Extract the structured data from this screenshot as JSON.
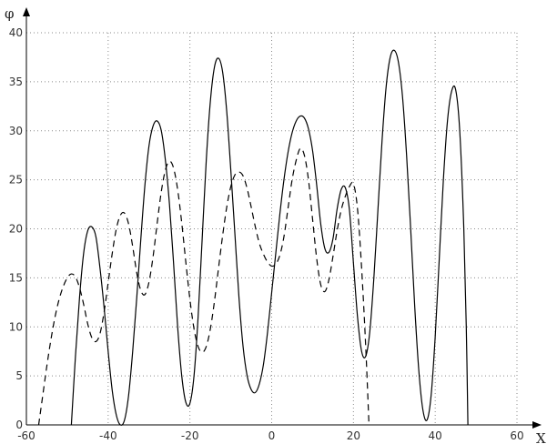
{
  "chart_data": {
    "type": "line",
    "title": "",
    "xlabel": "X",
    "ylabel": "φ",
    "xlim": [
      -60,
      60
    ],
    "ylim": [
      0,
      40
    ],
    "grid": true,
    "x_ticks": [
      "-60",
      "-40",
      "-20",
      "0",
      "20",
      "40",
      "60"
    ],
    "y_ticks": [
      "0",
      "5",
      "10",
      "15",
      "20",
      "25",
      "30",
      "35",
      "40"
    ],
    "series": [
      {
        "style": "solid",
        "color": "#000000",
        "points": [
          [
            -49,
            0
          ],
          [
            -48,
            7
          ],
          [
            -47,
            13
          ],
          [
            -46,
            17.5
          ],
          [
            -45,
            19.8
          ],
          [
            -44,
            20.2
          ],
          [
            -43,
            19.2
          ],
          [
            -42,
            16
          ],
          [
            -41,
            12
          ],
          [
            -40,
            7.5
          ],
          [
            -39,
            3.5
          ],
          [
            -38,
            1
          ],
          [
            -37,
            0
          ],
          [
            -36,
            0.5
          ],
          [
            -35,
            3
          ],
          [
            -34,
            7.5
          ],
          [
            -33,
            13
          ],
          [
            -32,
            19
          ],
          [
            -31,
            24.5
          ],
          [
            -30,
            28.5
          ],
          [
            -29,
            30.5
          ],
          [
            -28,
            31
          ],
          [
            -27,
            30
          ],
          [
            -26,
            27
          ],
          [
            -25,
            22.5
          ],
          [
            -24,
            16.5
          ],
          [
            -23,
            10
          ],
          [
            -22,
            5
          ],
          [
            -21,
            2.3
          ],
          [
            -20,
            2.2
          ],
          [
            -19,
            5
          ],
          [
            -18,
            11
          ],
          [
            -17,
            19
          ],
          [
            -16,
            27
          ],
          [
            -15,
            33
          ],
          [
            -14,
            36.5
          ],
          [
            -13,
            37.4
          ],
          [
            -12,
            36
          ],
          [
            -11,
            32
          ],
          [
            -10,
            26
          ],
          [
            -9,
            19.5
          ],
          [
            -8,
            13
          ],
          [
            -7,
            8
          ],
          [
            -6,
            5
          ],
          [
            -5,
            3.6
          ],
          [
            -4,
            3.3
          ],
          [
            -3,
            4.2
          ],
          [
            -2,
            6.2
          ],
          [
            -1,
            9.5
          ],
          [
            0,
            13.5
          ],
          [
            1,
            17.5
          ],
          [
            2,
            21.5
          ],
          [
            3,
            25
          ],
          [
            4,
            27.8
          ],
          [
            5,
            29.8
          ],
          [
            6,
            31
          ],
          [
            7,
            31.5
          ],
          [
            8,
            31.3
          ],
          [
            9,
            30.2
          ],
          [
            10,
            28
          ],
          [
            11,
            24.5
          ],
          [
            12,
            20.5
          ],
          [
            13,
            18
          ],
          [
            14,
            17.6
          ],
          [
            15,
            19
          ],
          [
            16,
            22
          ],
          [
            17,
            24
          ],
          [
            18,
            24.2
          ],
          [
            19,
            22
          ],
          [
            20,
            16.5
          ],
          [
            21,
            11
          ],
          [
            22,
            7.5
          ],
          [
            23,
            7
          ],
          [
            24,
            9.5
          ],
          [
            25,
            15
          ],
          [
            26,
            22
          ],
          [
            27,
            29
          ],
          [
            28,
            34.5
          ],
          [
            29,
            37.5
          ],
          [
            30,
            38.2
          ],
          [
            31,
            37
          ],
          [
            32,
            33.5
          ],
          [
            33,
            27.5
          ],
          [
            34,
            20
          ],
          [
            35,
            12
          ],
          [
            36,
            5.5
          ],
          [
            37,
            1.5
          ],
          [
            38,
            0.5
          ],
          [
            39,
            3
          ],
          [
            40,
            9
          ],
          [
            41,
            17
          ],
          [
            42,
            25
          ],
          [
            43,
            31
          ],
          [
            44,
            34
          ],
          [
            45,
            34.2
          ],
          [
            46,
            30
          ],
          [
            47,
            20
          ],
          [
            47.6,
            10
          ],
          [
            48,
            0
          ]
        ]
      },
      {
        "style": "dashed",
        "color": "#000000",
        "points": [
          [
            -57,
            0
          ],
          [
            -56,
            3
          ],
          [
            -55,
            6
          ],
          [
            -54,
            8.7
          ],
          [
            -53,
            11
          ],
          [
            -52,
            12.8
          ],
          [
            -51,
            14.1
          ],
          [
            -50,
            15
          ],
          [
            -49,
            15.4
          ],
          [
            -48,
            15.1
          ],
          [
            -47,
            14
          ],
          [
            -46,
            12.3
          ],
          [
            -45,
            10.3
          ],
          [
            -44,
            8.9
          ],
          [
            -43,
            8.5
          ],
          [
            -42,
            9.3
          ],
          [
            -41,
            11.5
          ],
          [
            -40,
            14.5
          ],
          [
            -39,
            17.5
          ],
          [
            -38,
            20
          ],
          [
            -37,
            21.4
          ],
          [
            -36,
            21.6
          ],
          [
            -35,
            20.5
          ],
          [
            -34,
            18.2
          ],
          [
            -33,
            15.5
          ],
          [
            -32,
            13.7
          ],
          [
            -31,
            13.3
          ],
          [
            -30,
            14.6
          ],
          [
            -29,
            17.2
          ],
          [
            -28,
            20.6
          ],
          [
            -27,
            23.8
          ],
          [
            -26,
            26
          ],
          [
            -25,
            26.9
          ],
          [
            -24,
            26.2
          ],
          [
            -23,
            24
          ],
          [
            -22,
            20.6
          ],
          [
            -21,
            16.6
          ],
          [
            -20,
            12.8
          ],
          [
            -19,
            9.8
          ],
          [
            -18,
            8
          ],
          [
            -17,
            7.4
          ],
          [
            -16,
            8
          ],
          [
            -15,
            9.8
          ],
          [
            -14,
            12.6
          ],
          [
            -13,
            16
          ],
          [
            -12,
            19.3
          ],
          [
            -11,
            22.2
          ],
          [
            -10,
            24.3
          ],
          [
            -9,
            25.5
          ],
          [
            -8,
            25.8
          ],
          [
            -7,
            25.4
          ],
          [
            -6,
            24.1
          ],
          [
            -5,
            22.2
          ],
          [
            -4,
            20.2
          ],
          [
            -3,
            18.5
          ],
          [
            -2,
            17.4
          ],
          [
            -1,
            16.6
          ],
          [
            0,
            16.2
          ],
          [
            1,
            16.4
          ],
          [
            2,
            17.3
          ],
          [
            3,
            19.2
          ],
          [
            4,
            22.1
          ],
          [
            5,
            25
          ],
          [
            6,
            27
          ],
          [
            7,
            28.2
          ],
          [
            8,
            27.5
          ],
          [
            9,
            25
          ],
          [
            10,
            21
          ],
          [
            11,
            17
          ],
          [
            12,
            14.3
          ],
          [
            13,
            13.6
          ],
          [
            14,
            14.8
          ],
          [
            15,
            17.2
          ],
          [
            16,
            19.8
          ],
          [
            17,
            21.9
          ],
          [
            18,
            23.3
          ],
          [
            19,
            24.3
          ],
          [
            20,
            24.6
          ],
          [
            21,
            22
          ],
          [
            22,
            16
          ],
          [
            23,
            8
          ],
          [
            23.8,
            0
          ]
        ]
      }
    ]
  }
}
